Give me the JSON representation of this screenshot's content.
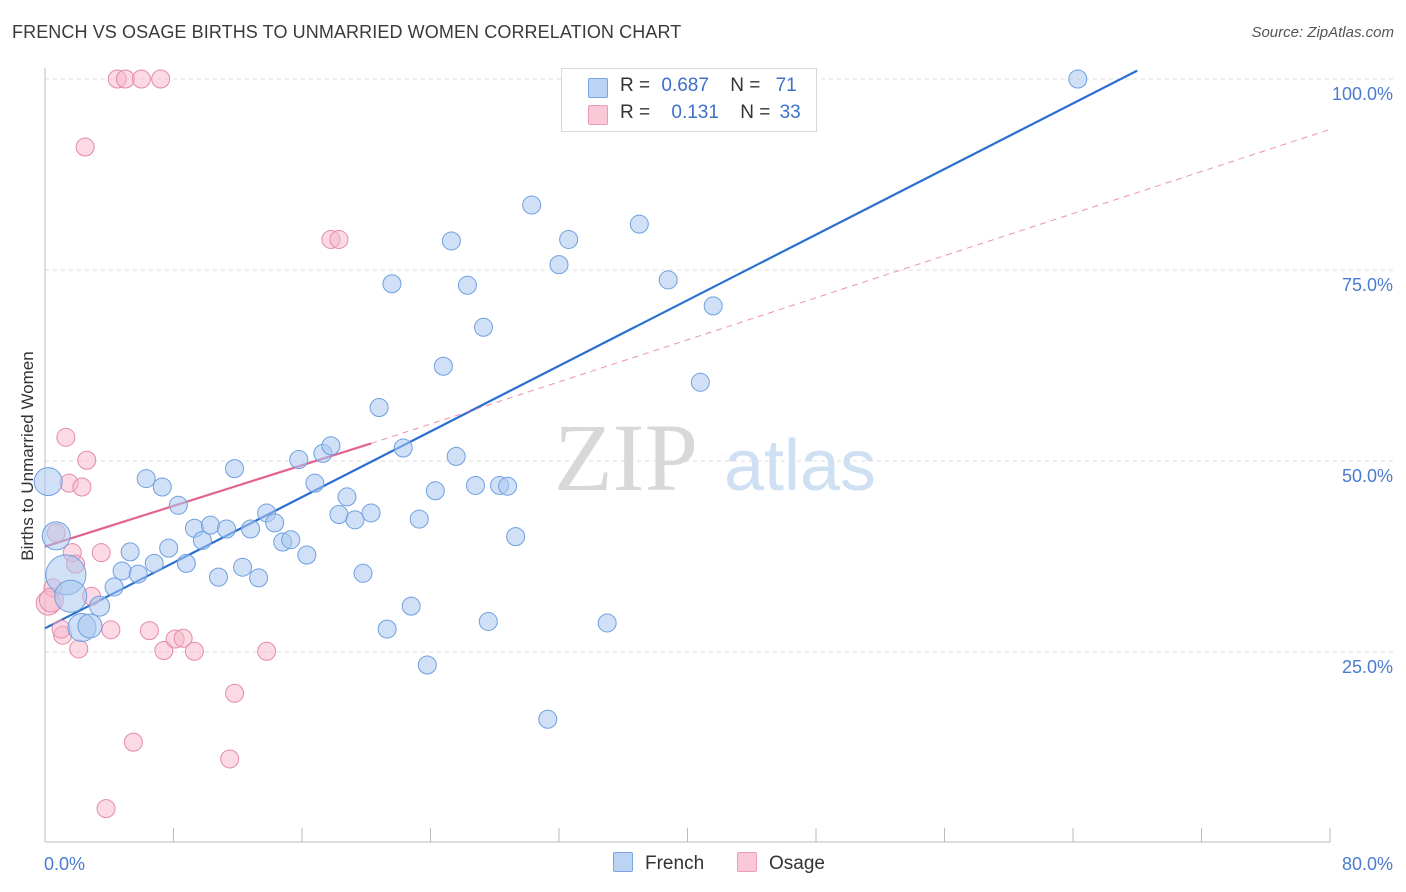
{
  "title": "FRENCH VS OSAGE BIRTHS TO UNMARRIED WOMEN CORRELATION CHART",
  "source": "Source: ZipAtlas.com",
  "watermark": {
    "zip": "ZIP",
    "atlas": "atlas"
  },
  "legend": {
    "french": {
      "r_label": "R =",
      "r_value": "0.687",
      "n_label": "N =",
      "n_value": "71"
    },
    "osage": {
      "r_label": "R =",
      "r_value": "0.131",
      "n_label": "N =",
      "n_value": "33"
    }
  },
  "bottom_legend": {
    "french": "French",
    "osage": "Osage"
  },
  "colors": {
    "french_fill": "#a9c8f0",
    "french_stroke": "#6f9fe0",
    "french_line": "#2a6fd0",
    "osage_fill": "#f7b6c9",
    "osage_stroke": "#e58aa8",
    "osage_line": "#e2638f",
    "grid": "#dcdcdc",
    "tick_text": "#4a7bd0"
  },
  "chart_data": {
    "type": "scatter",
    "title": "FRENCH VS OSAGE BIRTHS TO UNMARRIED WOMEN CORRELATION CHART",
    "xlabel": "",
    "ylabel": "Births to Unmarried Women",
    "xlim": [
      0,
      80
    ],
    "ylim": [
      0,
      103
    ],
    "x_tick_labels": [
      {
        "value": 0,
        "label": "0.0%"
      },
      {
        "value": 80,
        "label": "80.0%"
      }
    ],
    "x_minor_ticks": [
      8,
      16,
      24,
      32,
      40,
      48,
      56,
      64,
      72,
      80
    ],
    "y_ticks": [
      {
        "value": 25,
        "label": "25.0%"
      },
      {
        "value": 50,
        "label": "50.0%"
      },
      {
        "value": 75,
        "label": "75.0%"
      },
      {
        "value": 100,
        "label": "100.0%"
      }
    ],
    "grid": true,
    "series": [
      {
        "name": "French",
        "r": 0.687,
        "n": 71,
        "trendline": {
          "x": [
            0,
            68
          ],
          "y": [
            28.1,
            101.1
          ],
          "style": "solid"
        },
        "points": [
          [
            0.2,
            47.3,
            14
          ],
          [
            0.7,
            40.2,
            14
          ],
          [
            1.3,
            35.1,
            20
          ],
          [
            1.6,
            32.3,
            16
          ],
          [
            2.3,
            28.2,
            14
          ],
          [
            2.8,
            28.4,
            12
          ],
          [
            3.4,
            31.0,
            10
          ],
          [
            4.3,
            33.5,
            9
          ],
          [
            4.8,
            35.6,
            9
          ],
          [
            5.3,
            38.1,
            9
          ],
          [
            5.8,
            35.2,
            9
          ],
          [
            6.3,
            47.7,
            9
          ],
          [
            6.8,
            36.6,
            9
          ],
          [
            7.3,
            46.6,
            9
          ],
          [
            7.7,
            38.6,
            9
          ],
          [
            8.3,
            44.2,
            9
          ],
          [
            8.8,
            36.6,
            9
          ],
          [
            9.3,
            41.2,
            9
          ],
          [
            9.8,
            39.6,
            9
          ],
          [
            10.3,
            41.6,
            9
          ],
          [
            10.8,
            34.8,
            9
          ],
          [
            11.3,
            41.1,
            9
          ],
          [
            11.8,
            49.0,
            9
          ],
          [
            12.3,
            36.1,
            9
          ],
          [
            12.8,
            41.1,
            9
          ],
          [
            13.3,
            34.7,
            9
          ],
          [
            13.8,
            43.2,
            9
          ],
          [
            14.3,
            41.9,
            9
          ],
          [
            14.8,
            39.4,
            9
          ],
          [
            15.3,
            39.7,
            9
          ],
          [
            15.8,
            50.2,
            9
          ],
          [
            16.3,
            37.7,
            9
          ],
          [
            16.8,
            47.1,
            9
          ],
          [
            17.3,
            51.0,
            9
          ],
          [
            17.8,
            52.0,
            9
          ],
          [
            18.3,
            43.0,
            9
          ],
          [
            18.8,
            45.3,
            9
          ],
          [
            19.3,
            42.3,
            9
          ],
          [
            19.8,
            35.3,
            9
          ],
          [
            20.3,
            43.2,
            9
          ],
          [
            20.8,
            57.0,
            9
          ],
          [
            21.3,
            28.0,
            9
          ],
          [
            21.6,
            73.2,
            9
          ],
          [
            22.3,
            51.7,
            9
          ],
          [
            22.8,
            31.0,
            9
          ],
          [
            23.3,
            42.4,
            9
          ],
          [
            23.8,
            23.3,
            9
          ],
          [
            24.3,
            46.1,
            9
          ],
          [
            24.8,
            62.4,
            9
          ],
          [
            25.3,
            78.8,
            9
          ],
          [
            25.6,
            50.6,
            9
          ],
          [
            26.3,
            73.0,
            9
          ],
          [
            26.8,
            46.8,
            9
          ],
          [
            27.3,
            67.5,
            9
          ],
          [
            27.6,
            29.0,
            9
          ],
          [
            28.3,
            46.8,
            9
          ],
          [
            28.8,
            46.7,
            9
          ],
          [
            29.3,
            40.1,
            9
          ],
          [
            30.3,
            83.5,
            9
          ],
          [
            31.3,
            16.2,
            9
          ],
          [
            32.0,
            75.7,
            9
          ],
          [
            32.6,
            79.0,
            9
          ],
          [
            35.0,
            28.8,
            9
          ],
          [
            37.0,
            81.0,
            9
          ],
          [
            38.8,
            73.7,
            9
          ],
          [
            39.4,
            100.0,
            9
          ],
          [
            40.8,
            60.3,
            9
          ],
          [
            41.6,
            70.3,
            9
          ],
          [
            64.3,
            100.0,
            9
          ],
          [
            14.7,
            0,
            0
          ],
          [
            0,
            0,
            0
          ]
        ]
      },
      {
        "name": "Osage",
        "r": 0.131,
        "n": 33,
        "trendline": {
          "x": [
            0,
            20.3
          ],
          "y": [
            38.8,
            52.3
          ],
          "style": "solid"
        },
        "trendline_extension": {
          "x": [
            20.3,
            80
          ],
          "y": [
            52.3,
            93.4
          ],
          "style": "dashed"
        },
        "points": [
          [
            0.2,
            31.4,
            12
          ],
          [
            0.5,
            33.4,
            9
          ],
          [
            0.7,
            40.6,
            9
          ],
          [
            1.1,
            27.2,
            9
          ],
          [
            1.3,
            53.1,
            9
          ],
          [
            1.5,
            47.1,
            9
          ],
          [
            1.7,
            38.0,
            9
          ],
          [
            1.9,
            36.5,
            9
          ],
          [
            2.1,
            25.4,
            9
          ],
          [
            2.3,
            46.6,
            9
          ],
          [
            2.5,
            91.1,
            9
          ],
          [
            2.6,
            50.1,
            9
          ],
          [
            2.9,
            32.3,
            9
          ],
          [
            3.5,
            38.0,
            9
          ],
          [
            3.8,
            4.5,
            9
          ],
          [
            4.1,
            27.9,
            9
          ],
          [
            4.5,
            100.0,
            9
          ],
          [
            5.0,
            100.0,
            9
          ],
          [
            5.5,
            13.2,
            9
          ],
          [
            6.0,
            100.0,
            9
          ],
          [
            6.5,
            27.8,
            9
          ],
          [
            7.2,
            100.0,
            9
          ],
          [
            7.4,
            25.2,
            9
          ],
          [
            8.1,
            26.7,
            9
          ],
          [
            8.6,
            26.8,
            9
          ],
          [
            9.3,
            25.1,
            9
          ],
          [
            11.5,
            11.0,
            9
          ],
          [
            11.8,
            19.6,
            9
          ],
          [
            13.8,
            25.1,
            9
          ],
          [
            17.8,
            79.0,
            9
          ],
          [
            18.3,
            79.0,
            9
          ],
          [
            0.4,
            31.8,
            12
          ],
          [
            1.0,
            28.0,
            9
          ]
        ]
      }
    ]
  }
}
